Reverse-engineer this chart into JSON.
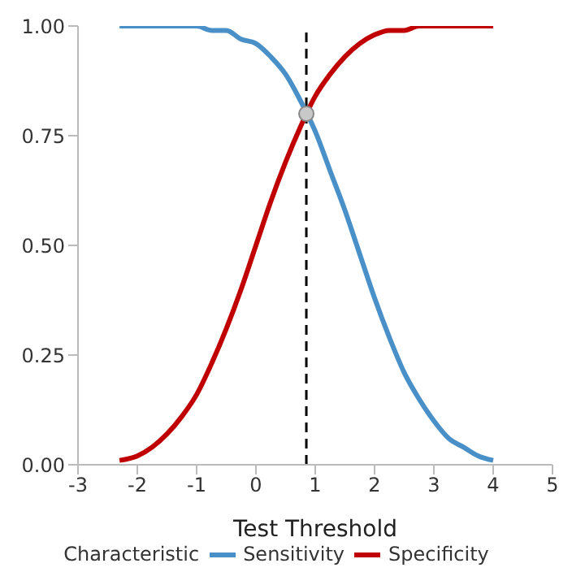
{
  "chart_data": {
    "type": "line",
    "xlabel": "Test Threshold",
    "legend_title": "Characteristic",
    "legend": "bottom",
    "grid": false,
    "marker": "none",
    "line_style": "solid",
    "x": [
      -2.3,
      -2,
      -1.75,
      -1.5,
      -1.25,
      -1,
      -0.75,
      -0.5,
      -0.25,
      0,
      0.25,
      0.5,
      0.75,
      1,
      1.25,
      1.5,
      1.75,
      2,
      2.25,
      2.5,
      2.75,
      3,
      3.25,
      3.5,
      3.75,
      4
    ],
    "series": [
      {
        "name": "Sensitivity",
        "color": "#4a90c8",
        "values": [
          1.0,
          1.0,
          1.0,
          1.0,
          1.0,
          1.0,
          0.99,
          0.99,
          0.97,
          0.96,
          0.93,
          0.89,
          0.83,
          0.76,
          0.67,
          0.58,
          0.48,
          0.38,
          0.29,
          0.21,
          0.15,
          0.1,
          0.06,
          0.04,
          0.02,
          0.01
        ]
      },
      {
        "name": "Specificity",
        "color": "#c00000",
        "values": [
          0.01,
          0.02,
          0.04,
          0.07,
          0.11,
          0.16,
          0.23,
          0.31,
          0.4,
          0.5,
          0.6,
          0.69,
          0.77,
          0.84,
          0.89,
          0.93,
          0.96,
          0.98,
          0.99,
          0.99,
          1.0,
          1.0,
          1.0,
          1.0,
          1.0,
          1.0
        ]
      },
      {
        "type": "scatter",
        "marker": "circle",
        "color": "#c8c8c8",
        "x": [
          0.85
        ],
        "values": [
          0.8
        ]
      }
    ],
    "ref_lines": [
      {
        "axis": "x",
        "value": 0.85,
        "color": "#000000",
        "line_style": "dashed"
      }
    ],
    "xlim": [
      -3,
      5
    ],
    "xticks": [
      -3,
      -2,
      -1,
      0,
      1,
      2,
      3,
      4,
      5
    ],
    "ylim": [
      0,
      1
    ],
    "yticks": [
      {
        "value": 0,
        "label": "0.00"
      },
      {
        "value": 0.25,
        "label": "0.25"
      },
      {
        "value": 0.5,
        "label": "0.50"
      },
      {
        "value": 0.75,
        "label": "0.75"
      },
      {
        "value": 1,
        "label": "1.00"
      }
    ]
  }
}
